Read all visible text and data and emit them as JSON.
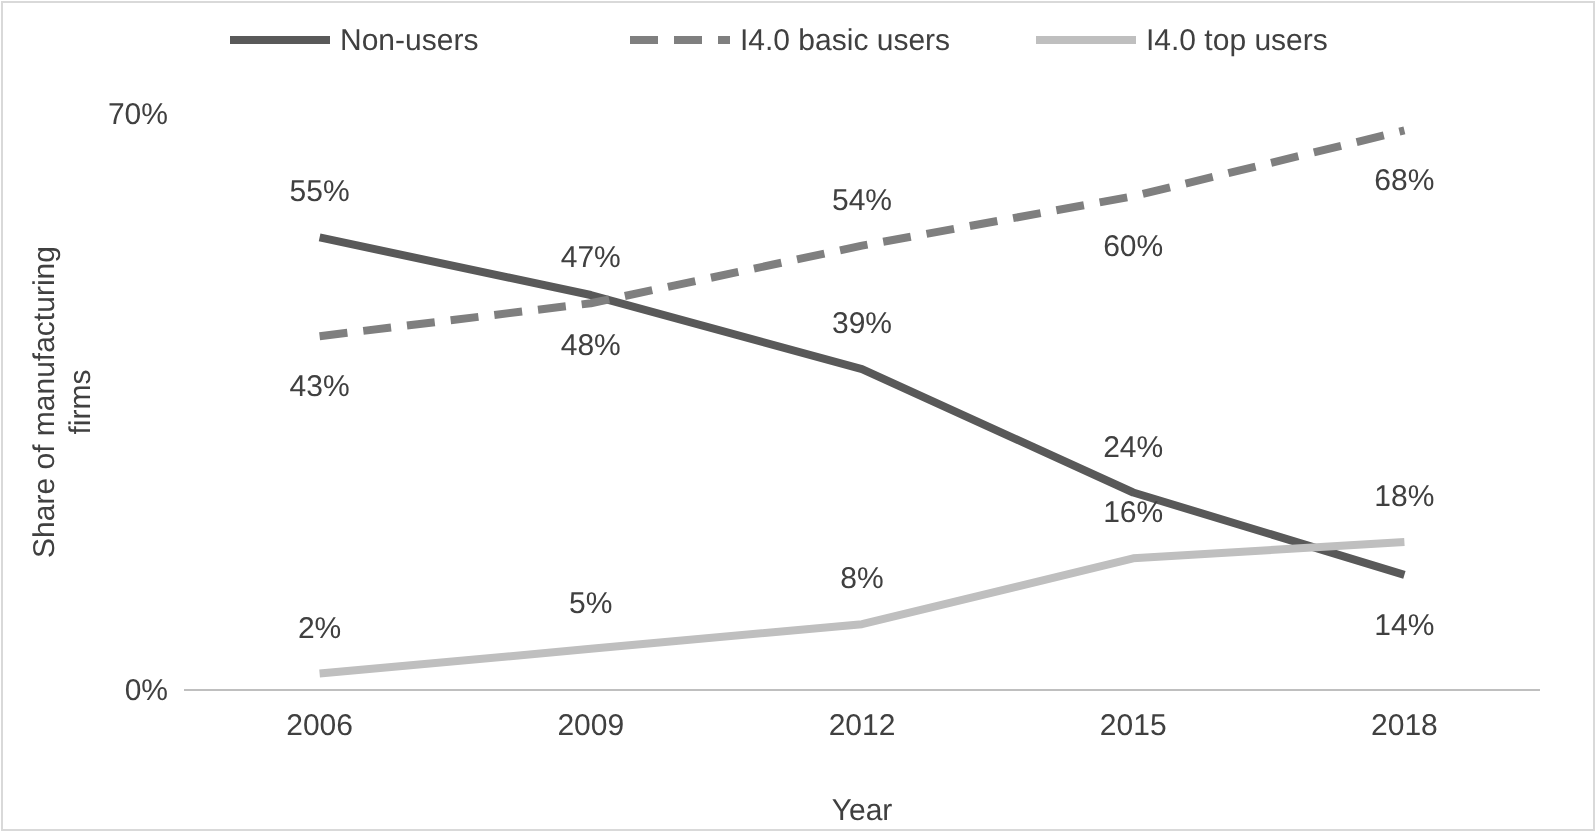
{
  "chart_data": {
    "type": "line",
    "xlabel": "Year",
    "ylabel": "Share of manufacturing firms",
    "categories": [
      "2006",
      "2009",
      "2012",
      "2015",
      "2018"
    ],
    "ylim": [
      0,
      70
    ],
    "yticks": [
      {
        "value": 0,
        "label": "0%"
      },
      {
        "value": 70,
        "label": "70%"
      }
    ],
    "grid": false,
    "legend": "top",
    "marker": "none",
    "series": [
      {
        "name": "Non-users",
        "color": "#595959",
        "line_style": "solid",
        "values": [
          55,
          48,
          39,
          24,
          14
        ],
        "value_labels": [
          "55%",
          "48%",
          "39%",
          "24%",
          "14%"
        ]
      },
      {
        "name": "I4.0 basic users",
        "color": "#7f7f7f",
        "line_style": "dashed",
        "values": [
          43,
          47,
          54,
          60,
          68
        ],
        "value_labels": [
          "43%",
          "47%",
          "54%",
          "60%",
          "68%"
        ]
      },
      {
        "name": "I4.0 top users",
        "color": "#bfbfbf",
        "line_style": "solid",
        "values": [
          2,
          5,
          8,
          16,
          18
        ],
        "value_labels": [
          "2%",
          "5%",
          "8%",
          "16%",
          "18%"
        ]
      }
    ]
  }
}
